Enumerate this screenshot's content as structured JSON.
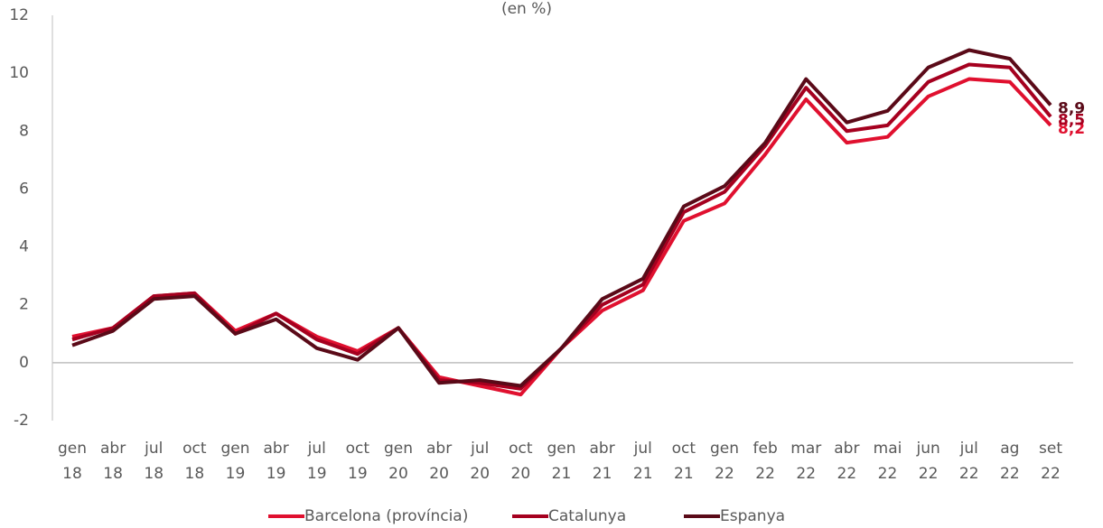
{
  "chart_data": {
    "type": "line",
    "title": "(en %)",
    "categories": [
      "gen 18",
      "abr 18",
      "jul 18",
      "oct 18",
      "gen 19",
      "abr 19",
      "jul 19",
      "oct 19",
      "gen 20",
      "abr 20",
      "jul 20",
      "oct 20",
      "gen 21",
      "abr 21",
      "jul 21",
      "oct 21",
      "gen 22",
      "feb 22",
      "mar 22",
      "abr 22",
      "mai 22",
      "jun 22",
      "jul 22",
      "ag 22",
      "set 22"
    ],
    "series": [
      {
        "name": "Barcelona (província)",
        "color": "#e0102f",
        "values": [
          0.9,
          1.2,
          2.3,
          2.4,
          1.1,
          1.7,
          0.9,
          0.4,
          1.2,
          -0.5,
          -0.8,
          -1.1,
          0.5,
          1.8,
          2.5,
          4.9,
          5.5,
          7.2,
          9.1,
          7.6,
          7.8,
          9.2,
          9.8,
          9.7,
          8.2
        ],
        "value_labels": [
          null,
          null,
          null,
          null,
          null,
          null,
          null,
          null,
          null,
          null,
          null,
          null,
          null,
          null,
          null,
          null,
          null,
          null,
          null,
          null,
          null,
          null,
          null,
          null,
          "8,2"
        ]
      },
      {
        "name": "Catalunya",
        "color": "#a5001f",
        "values": [
          0.8,
          1.2,
          2.3,
          2.4,
          1.0,
          1.7,
          0.8,
          0.3,
          1.2,
          -0.6,
          -0.7,
          -0.9,
          0.5,
          2.0,
          2.7,
          5.2,
          5.9,
          7.5,
          9.5,
          8.0,
          8.2,
          9.7,
          10.3,
          10.2,
          8.5
        ],
        "value_labels": [
          null,
          null,
          null,
          null,
          null,
          null,
          null,
          null,
          null,
          null,
          null,
          null,
          null,
          null,
          null,
          null,
          null,
          null,
          null,
          null,
          null,
          null,
          null,
          null,
          "8,5"
        ]
      },
      {
        "name": "Espanya",
        "color": "#5a0a18",
        "values": [
          0.6,
          1.1,
          2.2,
          2.3,
          1.0,
          1.5,
          0.5,
          0.1,
          1.2,
          -0.7,
          -0.6,
          -0.8,
          0.5,
          2.2,
          2.9,
          5.4,
          6.1,
          7.6,
          9.8,
          8.3,
          8.7,
          10.2,
          10.8,
          10.5,
          8.9
        ],
        "value_labels": [
          null,
          null,
          null,
          null,
          null,
          null,
          null,
          null,
          null,
          null,
          null,
          null,
          null,
          null,
          null,
          null,
          null,
          null,
          null,
          null,
          null,
          null,
          null,
          null,
          "8,9"
        ]
      }
    ],
    "ylim": [
      -2,
      12
    ],
    "yticks": [
      -2,
      0,
      2,
      4,
      6,
      8,
      10,
      12
    ],
    "grid": false,
    "legend": "bottom"
  }
}
